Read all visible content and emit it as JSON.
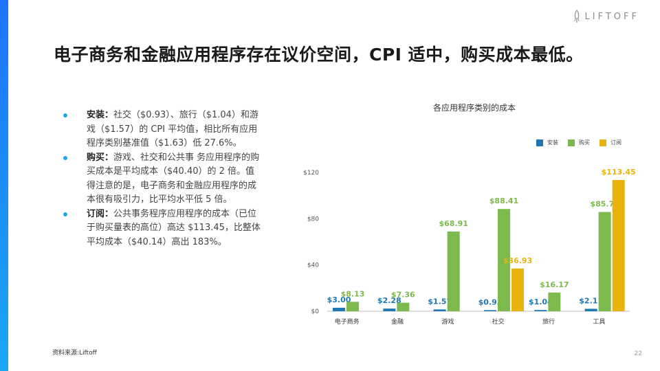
{
  "logo": {
    "text": "LIFTOFF",
    "icon": "rocket-icon"
  },
  "title": "电子商务和金融应用程序存在议价空间，CPI 适中，购买成本最低。",
  "bullets": [
    {
      "lead": "安装：",
      "text": "社交（$0.93）、旅行（$1.04）和游戏（$1.57）的 CPI 平均值，相比所有应用程序类别基准值（$1.63）低 27.6%。"
    },
    {
      "lead": "购买：",
      "text": "游戏、社交和公共事 务应用程序的购买成本是平均成本（$40.40）的 2 倍。值得注意的是，电子商务和金融应用程序的成本很有吸引力，比平均水平低 5 倍。"
    },
    {
      "lead": "订阅：",
      "text": "公共事务程序应用程序的成本（已位于购买量表的高位）高达 $113.45，比整体平均成本（$40.14）高出 183%。"
    }
  ],
  "source": "资料来源:Liftoff",
  "page_number": "22",
  "colors": {
    "install": "#1f77b4",
    "purchase": "#7dba4d",
    "subscribe": "#e8b30e",
    "accent": "#1e74ff"
  },
  "chart_data": {
    "type": "bar",
    "title": "各应用程序类别的成本",
    "categories": [
      "电子商务",
      "金融",
      "游戏",
      "社交",
      "旅行",
      "工具"
    ],
    "series": [
      {
        "name": "安装",
        "values": [
          3.0,
          2.28,
          1.57,
          0.93,
          1.04,
          2.11
        ],
        "labels": [
          "$3.00",
          "$2.28",
          "$1.57",
          "$0.93",
          "$1.04",
          "$2.11"
        ]
      },
      {
        "name": "购买",
        "values": [
          8.13,
          7.36,
          68.91,
          88.41,
          16.17,
          85.78
        ],
        "labels": [
          "$8.13",
          "$7.36",
          "$68.91",
          "$88.41",
          "$16.17",
          "$85.78"
        ]
      },
      {
        "name": "订阅",
        "values": [
          null,
          null,
          null,
          36.93,
          null,
          113.45
        ],
        "labels": [
          "",
          "",
          "",
          "$36.93",
          "",
          "$113.45"
        ]
      }
    ],
    "yticks": [
      "$0",
      "$40",
      "$80",
      "$120"
    ],
    "ylim": [
      0,
      120
    ],
    "legend_position": "top-right",
    "grid": false
  }
}
